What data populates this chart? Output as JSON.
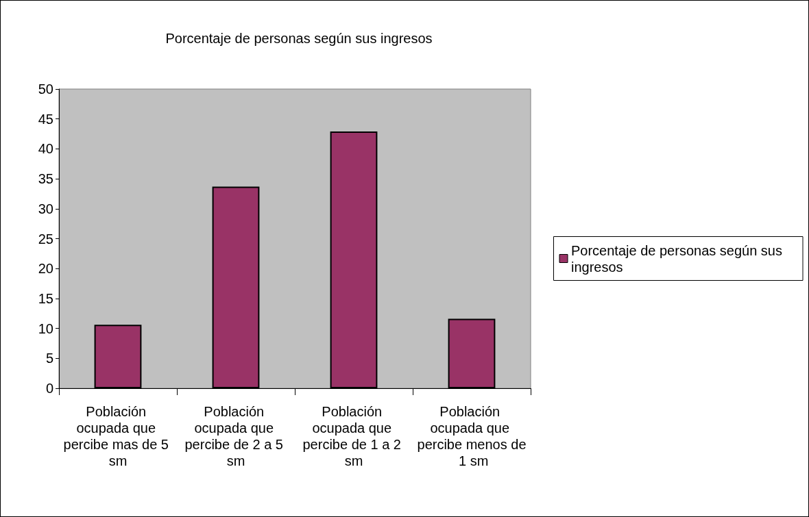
{
  "chart_data": {
    "type": "bar",
    "title": "Porcentaje de personas según sus ingresos",
    "categories": [
      "Población ocupada que percibe mas de 5 sm",
      "Población ocupada que percibe de 2 a 5 sm",
      "Población ocupada que percibe de 1 a 2 sm",
      "Población ocupada que percibe menos de 1 sm"
    ],
    "series": [
      {
        "name": "Porcentaje de personas según sus ingresos",
        "color": "#993366",
        "values": [
          10.6,
          33.7,
          42.9,
          11.6
        ]
      }
    ],
    "ylim": [
      0,
      50
    ],
    "yticks": [
      0,
      5,
      10,
      15,
      20,
      25,
      30,
      35,
      40,
      45,
      50
    ],
    "grid": false,
    "legend": "right"
  }
}
